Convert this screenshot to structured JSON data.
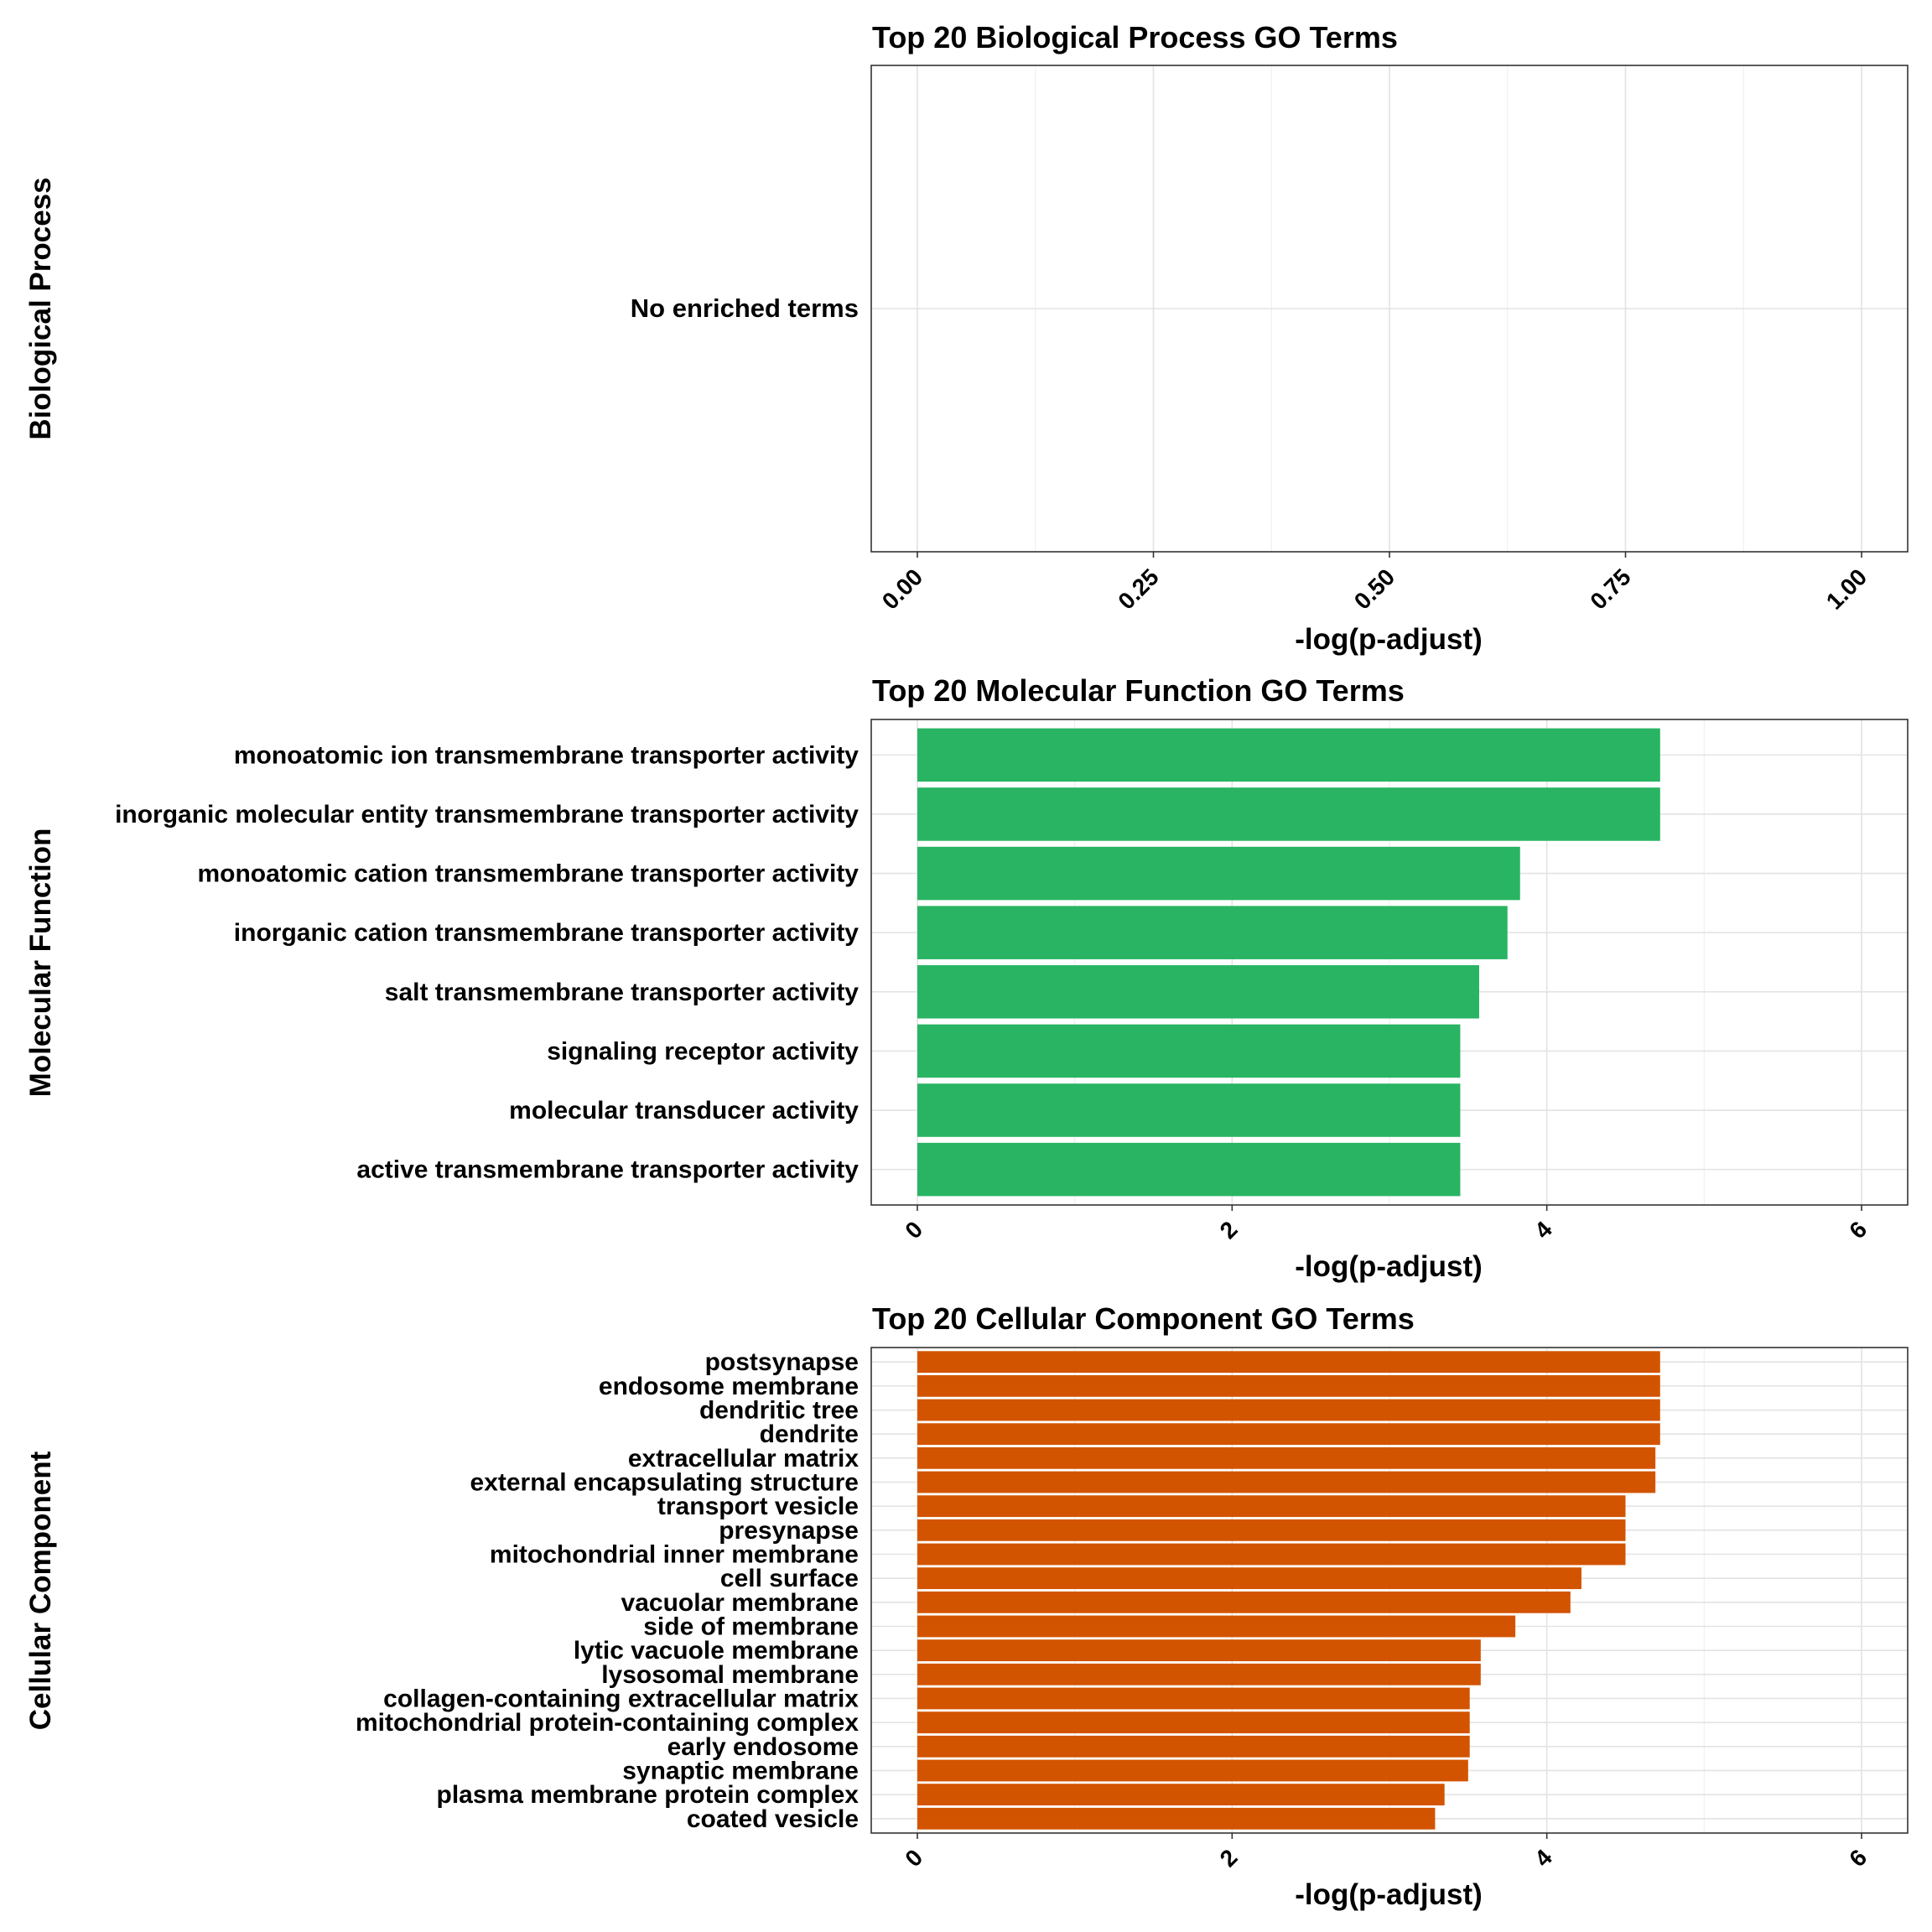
{
  "colors": {
    "molecular_function_bar": "#29b463",
    "cellular_component_bar": "#d35400",
    "background": "#ffffff",
    "panel_border": "#333333",
    "grid": "#e3e3e3"
  },
  "chart_data": [
    {
      "type": "bar",
      "orientation": "horizontal",
      "title": "Top 20 Biological Process GO Terms",
      "ylabel": "Biological Process",
      "xlabel": "-log(p-adjust)",
      "categories": [
        "No enriched terms"
      ],
      "values": [
        0
      ],
      "xlim": [
        0,
        1
      ],
      "xticks": [
        "0.00",
        "0.25",
        "0.50",
        "0.75",
        "1.00"
      ],
      "grid": true
    },
    {
      "type": "bar",
      "orientation": "horizontal",
      "title": "Top 20 Molecular Function GO Terms",
      "ylabel": "Molecular Function",
      "xlabel": "-log(p-adjust)",
      "categories": [
        "monoatomic ion transmembrane transporter activity",
        "inorganic molecular entity transmembrane transporter activity",
        "monoatomic cation transmembrane transporter activity",
        "inorganic cation transmembrane transporter activity",
        "salt transmembrane transporter activity",
        "signaling receptor activity",
        "molecular transducer activity",
        "active transmembrane transporter activity"
      ],
      "values": [
        4.72,
        4.72,
        3.83,
        3.75,
        3.57,
        3.45,
        3.45,
        3.45
      ],
      "xlim": [
        0,
        6
      ],
      "xticks": [
        "0",
        "2",
        "4",
        "6"
      ],
      "grid": true
    },
    {
      "type": "bar",
      "orientation": "horizontal",
      "title": "Top 20 Cellular Component GO Terms",
      "ylabel": "Cellular Component",
      "xlabel": "-log(p-adjust)",
      "categories": [
        "postsynapse",
        "endosome membrane",
        "dendritic tree",
        "dendrite",
        "extracellular matrix",
        "external encapsulating structure",
        "transport vesicle",
        "presynapse",
        "mitochondrial inner membrane",
        "cell surface",
        "vacuolar membrane",
        "side of membrane",
        "lytic vacuole membrane",
        "lysosomal membrane",
        "collagen-containing extracellular matrix",
        "mitochondrial protein-containing complex",
        "early endosome",
        "synaptic membrane",
        "plasma membrane protein complex",
        "coated vesicle"
      ],
      "values": [
        4.72,
        4.72,
        4.72,
        4.72,
        4.69,
        4.69,
        4.5,
        4.5,
        4.5,
        4.22,
        4.15,
        3.8,
        3.58,
        3.58,
        3.51,
        3.51,
        3.51,
        3.5,
        3.35,
        3.29
      ],
      "xlim": [
        0,
        6
      ],
      "xticks": [
        "0",
        "2",
        "4",
        "6"
      ],
      "grid": true
    }
  ]
}
